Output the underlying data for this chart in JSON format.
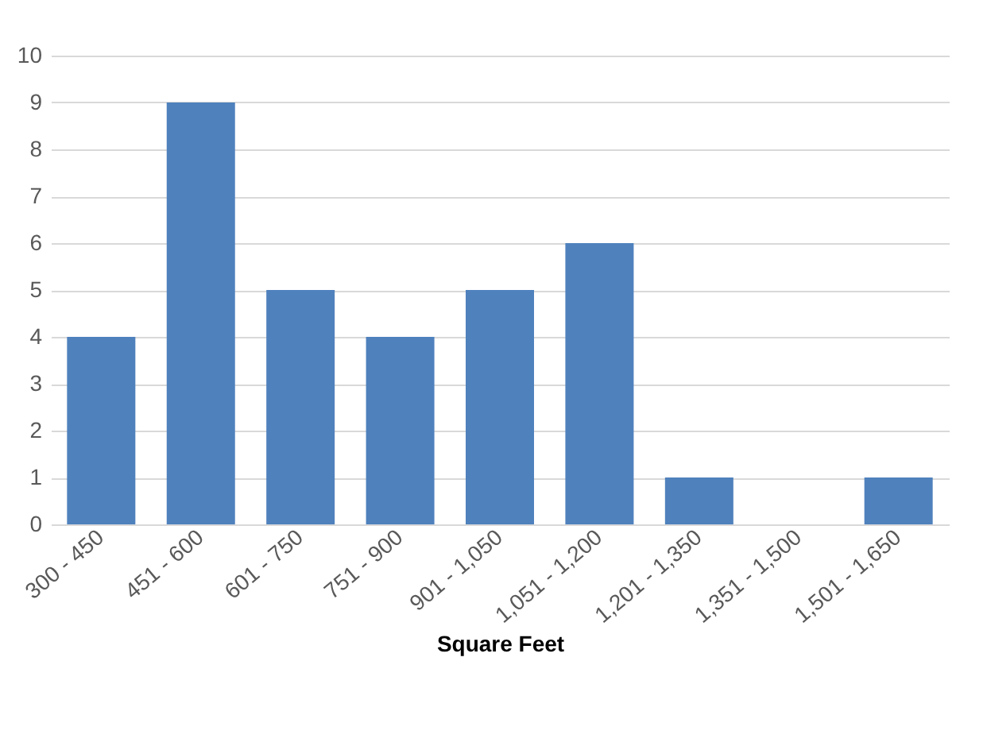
{
  "chart_data": {
    "type": "bar",
    "xlabel": "Square Feet",
    "categories": [
      "300 - 450",
      "451 - 600",
      "601 - 750",
      "751 - 900",
      "901 - 1,050",
      "1,051 - 1,200",
      "1,201 - 1,350",
      "1,351 - 1,500",
      "1,501 - 1,650"
    ],
    "values": [
      4,
      9,
      5,
      4,
      5,
      6,
      1,
      0,
      1
    ],
    "color": "#4f81bd",
    "ylim": [
      0,
      10
    ],
    "yticks": [
      0,
      1,
      2,
      3,
      4,
      5,
      6,
      7,
      8,
      9,
      10
    ],
    "grid": "y"
  }
}
